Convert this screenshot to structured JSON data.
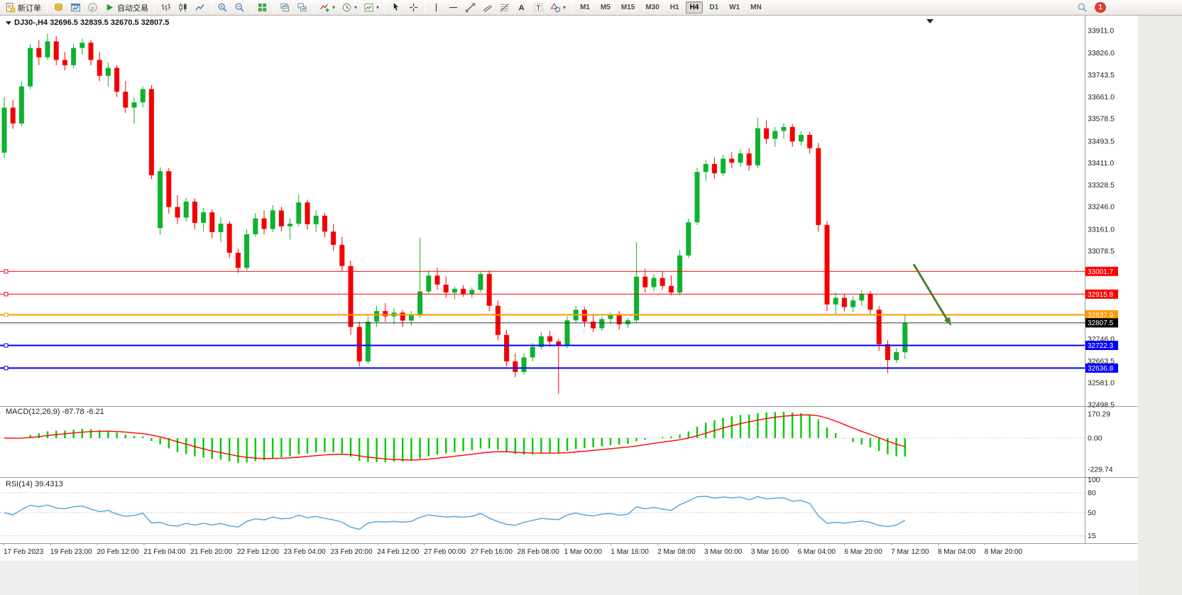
{
  "toolbar": {
    "groups": [
      {
        "items": [
          {
            "name": "new-order-button",
            "icon": "new-order-icon",
            "label": "新订单"
          }
        ]
      },
      {
        "items": [
          {
            "name": "market-watch-button",
            "icon": "gold-coins-icon"
          },
          {
            "name": "chart-window-button",
            "icon": "chart-window-icon"
          },
          {
            "name": "metaeditor-button",
            "icon": "metaeditor-icon"
          },
          {
            "name": "autotrading-button",
            "icon": "play-icon",
            "label": "自动交易"
          }
        ]
      },
      {
        "items": [
          {
            "name": "bar-chart-mode-button",
            "icon": "bars-icon"
          },
          {
            "name": "candlestick-mode-button",
            "icon": "candles-icon"
          },
          {
            "name": "line-chart-mode-button",
            "icon": "line-chart-icon"
          }
        ]
      },
      {
        "items": [
          {
            "name": "zoom-in-button",
            "icon": "zoom-in-icon"
          },
          {
            "name": "zoom-out-button",
            "icon": "zoom-out-icon"
          }
        ]
      },
      {
        "items": [
          {
            "name": "tile-windows-button",
            "icon": "tile-windows-icon"
          }
        ]
      },
      {
        "items": [
          {
            "name": "arrange-windows-button",
            "icon": "arrange-windows-icon"
          },
          {
            "name": "cascade-windows-button",
            "icon": "cascade-windows-icon"
          }
        ]
      },
      {
        "items": [
          {
            "name": "indicators-button",
            "icon": "indicators-icon",
            "dropdown": true
          },
          {
            "name": "periods-button",
            "icon": "clock-icon",
            "dropdown": true
          },
          {
            "name": "templates-button",
            "icon": "template-icon",
            "dropdown": true
          }
        ]
      },
      {
        "items": [
          {
            "name": "cursor-tool-button",
            "icon": "cursor-icon"
          },
          {
            "name": "crosshair-tool-button",
            "icon": "crosshair-icon"
          }
        ]
      },
      {
        "items": [
          {
            "name": "vertical-line-tool-button",
            "icon": "vertical-line-icon"
          },
          {
            "name": "horizontal-line-tool-button",
            "icon": "horizontal-line-icon"
          },
          {
            "name": "trendline-tool-button",
            "icon": "trendline-icon"
          },
          {
            "name": "channel-tool-button",
            "icon": "channel-icon"
          },
          {
            "name": "fibonacci-tool-button",
            "icon": "fibonacci-icon"
          },
          {
            "name": "text-tool-button",
            "icon": "text-icon"
          },
          {
            "name": "label-tool-button",
            "icon": "label-icon"
          },
          {
            "name": "shapes-tool-button",
            "icon": "shapes-icon",
            "dropdown": true
          }
        ]
      }
    ],
    "timeframes": {
      "options": [
        "M1",
        "M5",
        "M15",
        "M30",
        "H1",
        "H4",
        "D1",
        "W1",
        "MN"
      ],
      "active": "H4"
    },
    "right": [
      {
        "name": "search-button",
        "icon": "search-icon"
      },
      {
        "name": "notification-badge",
        "badge": "1"
      }
    ]
  },
  "chart": {
    "header": {
      "text": "DJ30-,H4  32696.5 32839.5 32670.5 32807.5",
      "symbol": "DJ30-",
      "period": "H4",
      "open": "32696.5",
      "high": "32839.5",
      "low": "32670.5",
      "close": "32807.5"
    }
  },
  "chart_data": {
    "type": "candlestick",
    "symbol": "DJ30-",
    "timeframe": "H4",
    "ylim": [
      32498.5,
      33911.0
    ],
    "y_ticks": [
      "33911.0",
      "33826.0",
      "33743.5",
      "33661.0",
      "33578.5",
      "33493.5",
      "33411.0",
      "33328.5",
      "33246.0",
      "33161.0",
      "33078.5",
      "32746.0",
      "32663.5",
      "32581.0",
      "32498.5"
    ],
    "x_labels": [
      "17 Feb 2023",
      "19 Feb 23:00",
      "20 Feb 12:00",
      "21 Feb 04:00",
      "21 Feb 20:00",
      "22 Feb 12:00",
      "23 Feb 04:00",
      "23 Feb 20:00",
      "24 Feb 12:00",
      "27 Feb 00:00",
      "27 Feb 16:00",
      "28 Feb 08:00",
      "1 Mar 00:00",
      "1 Mar 16:00",
      "2 Mar 08:00",
      "3 Mar 00:00",
      "3 Mar 16:00",
      "6 Mar 04:00",
      "6 Mar 20:00",
      "7 Mar 12:00",
      "8 Mar 04:00",
      "8 Mar 20:00"
    ],
    "hlines": [
      {
        "price": 33001.7,
        "label": "33001.7",
        "color": "#ff0000",
        "width": 1
      },
      {
        "price": 32915.8,
        "label": "32915.8",
        "color": "#ff0000",
        "width": 1
      },
      {
        "price": 32837.9,
        "label": "32837.9",
        "color": "#ff9900",
        "width": 2
      },
      {
        "price": 32722.3,
        "label": "32722.3",
        "color": "#0000ff",
        "width": 2
      },
      {
        "price": 32636.8,
        "label": "32636.8",
        "color": "#0000ff",
        "width": 2
      }
    ],
    "current_price": 32807.5,
    "current_price_label": "32807.5",
    "indicators": [
      {
        "name": "MACD",
        "params": [
          12,
          26,
          9
        ],
        "display": "MACD(12,26,9) -87.78 -6.21",
        "axis_ticks": [
          "170.29",
          "0.00",
          "-229.74"
        ]
      },
      {
        "name": "RSI",
        "params": [
          14
        ],
        "display": "RSI(14) 39.4313",
        "axis_ticks": [
          "100",
          "80",
          "50",
          "15"
        ]
      }
    ],
    "annotations": [
      {
        "type": "arrow",
        "direction": "down-right",
        "color": "#4e7f2a"
      }
    ],
    "colors": {
      "up": "#0db22d",
      "down": "#f40000",
      "macd_histogram": "#00cc00",
      "macd_signal": "#ff0000",
      "rsi_line": "#4da3e0",
      "hline_current": "#333333"
    },
    "ohlc": [
      [
        33450,
        33660,
        33430,
        33620
      ],
      [
        33620,
        33650,
        33540,
        33560
      ],
      [
        33560,
        33720,
        33550,
        33700
      ],
      [
        33700,
        33860,
        33690,
        33845
      ],
      [
        33845,
        33875,
        33780,
        33810
      ],
      [
        33810,
        33900,
        33800,
        33870
      ],
      [
        33870,
        33890,
        33780,
        33800
      ],
      [
        33800,
        33830,
        33760,
        33780
      ],
      [
        33780,
        33860,
        33770,
        33845
      ],
      [
        33845,
        33880,
        33820,
        33865
      ],
      [
        33865,
        33875,
        33780,
        33800
      ],
      [
        33800,
        33830,
        33720,
        33740
      ],
      [
        33740,
        33790,
        33700,
        33770
      ],
      [
        33770,
        33780,
        33660,
        33680
      ],
      [
        33680,
        33720,
        33600,
        33620
      ],
      [
        33620,
        33660,
        33560,
        33640
      ],
      [
        33640,
        33700,
        33620,
        33690
      ],
      [
        33690,
        33705,
        33350,
        33365
      ],
      [
        33165,
        33395,
        33140,
        33380
      ],
      [
        33380,
        33392,
        33220,
        33245
      ],
      [
        33245,
        33290,
        33180,
        33205
      ],
      [
        33205,
        33280,
        33190,
        33265
      ],
      [
        33265,
        33278,
        33160,
        33185
      ],
      [
        33185,
        33242,
        33152,
        33225
      ],
      [
        33225,
        33235,
        33128,
        33150
      ],
      [
        33150,
        33205,
        33112,
        33182
      ],
      [
        33182,
        33192,
        33052,
        33072
      ],
      [
        33072,
        33088,
        32996,
        33015
      ],
      [
        33015,
        33162,
        33005,
        33142
      ],
      [
        33142,
        33222,
        33132,
        33202
      ],
      [
        33202,
        33232,
        33142,
        33162
      ],
      [
        33162,
        33252,
        33150,
        33232
      ],
      [
        33232,
        33246,
        33152,
        33172
      ],
      [
        33172,
        33202,
        33122,
        33182
      ],
      [
        33182,
        33292,
        33172,
        33262
      ],
      [
        33262,
        33272,
        33160,
        33180
      ],
      [
        33180,
        33232,
        33150,
        33212
      ],
      [
        33212,
        33222,
        33130,
        33152
      ],
      [
        33152,
        33182,
        33080,
        33102
      ],
      [
        33102,
        33132,
        33002,
        33022
      ],
      [
        33022,
        33042,
        32762,
        32792
      ],
      [
        32792,
        32812,
        32642,
        32662
      ],
      [
        32662,
        32832,
        32652,
        32812
      ],
      [
        32812,
        32872,
        32792,
        32852
      ],
      [
        32852,
        32882,
        32812,
        32832
      ],
      [
        32832,
        32862,
        32802,
        32846
      ],
      [
        32846,
        32856,
        32792,
        32816
      ],
      [
        32816,
        32852,
        32796,
        32836
      ],
      [
        32836,
        33130,
        32826,
        32926
      ],
      [
        32926,
        33006,
        32916,
        32986
      ],
      [
        32986,
        33016,
        32932,
        32952
      ],
      [
        32952,
        32982,
        32902,
        32922
      ],
      [
        32922,
        32946,
        32896,
        32936
      ],
      [
        32936,
        32950,
        32906,
        32916
      ],
      [
        32916,
        32942,
        32902,
        32932
      ],
      [
        32932,
        33002,
        32922,
        32992
      ],
      [
        32992,
        33006,
        32852,
        32872
      ],
      [
        32872,
        32892,
        32742,
        32762
      ],
      [
        32762,
        32782,
        32642,
        32662
      ],
      [
        32662,
        32692,
        32602,
        32622
      ],
      [
        32622,
        32692,
        32612,
        32677
      ],
      [
        32677,
        32732,
        32662,
        32717
      ],
      [
        32717,
        32772,
        32707,
        32757
      ],
      [
        32757,
        32777,
        32717,
        32737
      ],
      [
        32737,
        32747,
        32540,
        32722
      ],
      [
        32722,
        32832,
        32712,
        32817
      ],
      [
        32817,
        32872,
        32807,
        32857
      ],
      [
        32857,
        32867,
        32792,
        32812
      ],
      [
        32812,
        32842,
        32772,
        32787
      ],
      [
        32787,
        32832,
        32777,
        32822
      ],
      [
        32822,
        32847,
        32802,
        32837
      ],
      [
        32837,
        32852,
        32782,
        32802
      ],
      [
        32802,
        32827,
        32787,
        32817
      ],
      [
        32817,
        33112,
        32807,
        32982
      ],
      [
        32982,
        33012,
        32922,
        32942
      ],
      [
        32942,
        32992,
        32927,
        32977
      ],
      [
        32977,
        33002,
        32932,
        32947
      ],
      [
        32947,
        32987,
        32912,
        32922
      ],
      [
        32922,
        33082,
        32912,
        33062
      ],
      [
        33062,
        33202,
        33052,
        33187
      ],
      [
        33187,
        33392,
        33177,
        33377
      ],
      [
        33377,
        33422,
        33342,
        33407
      ],
      [
        33407,
        33432,
        33352,
        33372
      ],
      [
        33372,
        33442,
        33362,
        33427
      ],
      [
        33427,
        33452,
        33392,
        33412
      ],
      [
        33412,
        33462,
        33397,
        33447
      ],
      [
        33447,
        33467,
        33382,
        33402
      ],
      [
        33402,
        33582,
        33392,
        33542
      ],
      [
        33542,
        33572,
        33482,
        33502
      ],
      [
        33502,
        33547,
        33472,
        33532
      ],
      [
        33532,
        33562,
        33502,
        33547
      ],
      [
        33547,
        33557,
        33472,
        33492
      ],
      [
        33492,
        33532,
        33477,
        33517
      ],
      [
        33517,
        33527,
        33447,
        33467
      ],
      [
        33467,
        33487,
        33152,
        33177
      ],
      [
        33177,
        33192,
        32852,
        32877
      ],
      [
        32877,
        32922,
        32842,
        32902
      ],
      [
        32902,
        32917,
        32852,
        32867
      ],
      [
        32867,
        32907,
        32847,
        32892
      ],
      [
        32892,
        32932,
        32872,
        32917
      ],
      [
        32917,
        32927,
        32842,
        32857
      ],
      [
        32857,
        32872,
        32702,
        32727
      ],
      [
        32727,
        32742,
        32617,
        32667
      ],
      [
        32667,
        32712,
        32657,
        32697
      ],
      [
        32696.5,
        32839.5,
        32670.5,
        32807.5
      ]
    ]
  }
}
